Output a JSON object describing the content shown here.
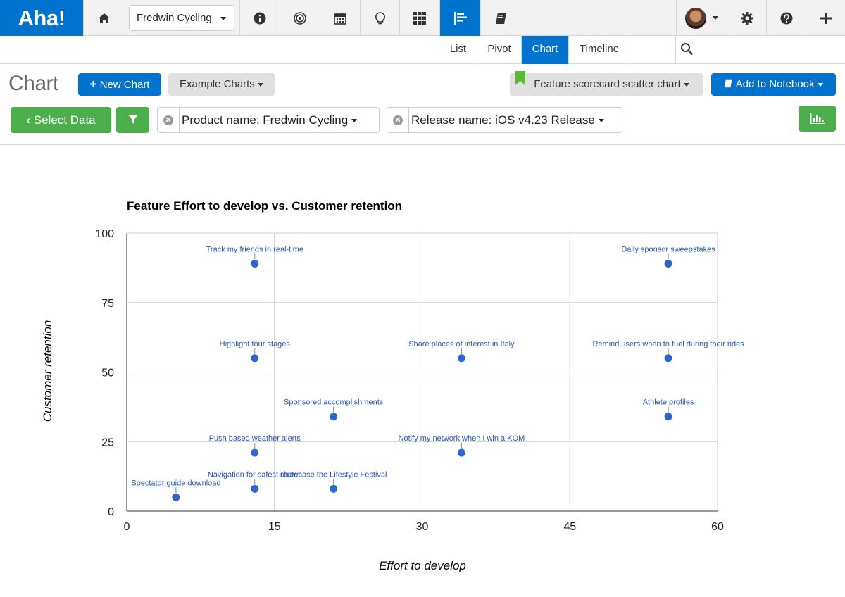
{
  "app": {
    "logo": "Aha!",
    "workspace": "Fredwin Cycling"
  },
  "nav_icons": [
    "home-icon",
    "info-icon",
    "goals-icon",
    "calendar-icon",
    "lightbulb-icon",
    "grid-icon",
    "reports-icon",
    "notebook-icon",
    "settings-icon",
    "help-icon",
    "plus-icon"
  ],
  "subnav": {
    "tabs": [
      "List",
      "Pivot",
      "Chart",
      "Timeline"
    ],
    "active": "Chart"
  },
  "toolbar": {
    "title": "Chart",
    "new_chart": "New Chart",
    "example_charts": "Example Charts",
    "saved_view": "Feature scorecard scatter chart",
    "add_to_notebook": "Add to Notebook",
    "select_data": "Select Data",
    "filters": [
      "Product name: Fredwin Cycling",
      "Release name: iOS v4.23 Release"
    ]
  },
  "colors": {
    "accent": "#0073cf",
    "green": "#4cae4c",
    "point": "#2e66c9",
    "label": "#2b57b8"
  },
  "chart_data": {
    "type": "scatter",
    "title": "Feature Effort to develop vs. Customer retention",
    "xlabel": "Effort to develop",
    "ylabel": "Customer retention",
    "xlim": [
      0,
      60
    ],
    "ylim": [
      0,
      100
    ],
    "xticks": [
      0,
      15,
      30,
      45,
      60
    ],
    "yticks": [
      0,
      25,
      50,
      75,
      100
    ],
    "grid": true,
    "points": [
      {
        "label": "Track my friends in real-time",
        "x": 13,
        "y": 89
      },
      {
        "label": "Daily sponsor sweepstakes",
        "x": 55,
        "y": 89
      },
      {
        "label": "Highlight tour stages",
        "x": 13,
        "y": 55
      },
      {
        "label": "Share places of interest in Italy",
        "x": 34,
        "y": 55
      },
      {
        "label": "Remind users when to fuel during their rides",
        "x": 55,
        "y": 55
      },
      {
        "label": "Sponsored accomplishments",
        "x": 21,
        "y": 34
      },
      {
        "label": "Athlete profiles",
        "x": 55,
        "y": 34
      },
      {
        "label": "Push based weather alerts",
        "x": 13,
        "y": 21
      },
      {
        "label": "Notify my network when I win a KOM",
        "x": 34,
        "y": 21
      },
      {
        "label": "Navigation for safest routes",
        "x": 13,
        "y": 8
      },
      {
        "label": "showcase the Lifestyle Festival",
        "x": 21,
        "y": 8
      },
      {
        "label": "Spectator guide download",
        "x": 5,
        "y": 5
      }
    ]
  }
}
